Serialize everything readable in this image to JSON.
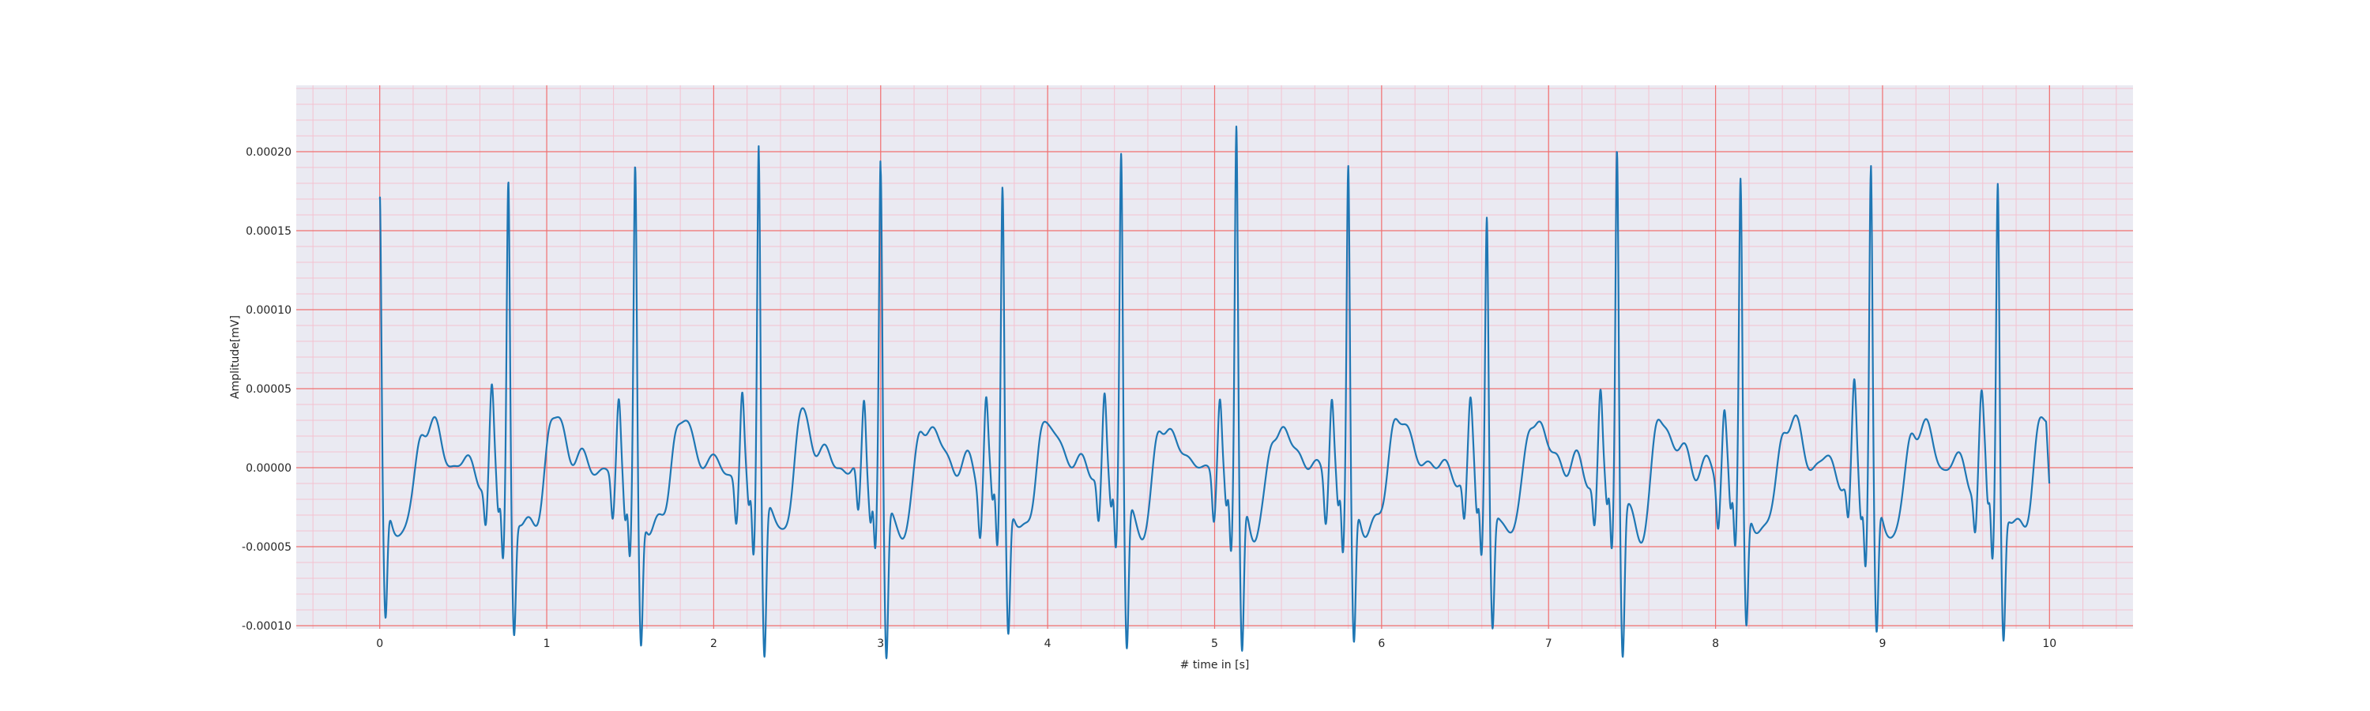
{
  "chart_data": {
    "type": "line",
    "title": "",
    "xlabel": "# time in [s]",
    "ylabel": "Amplitude[mV]",
    "xlim": [
      -0.5,
      10.5
    ],
    "ylim": [
      -0.000102,
      0.000242
    ],
    "x_ticks": [
      0,
      1,
      2,
      3,
      4,
      5,
      6,
      7,
      8,
      9,
      10
    ],
    "x_tick_labels": [
      "0",
      "1",
      "2",
      "3",
      "4",
      "5",
      "6",
      "7",
      "8",
      "9",
      "10"
    ],
    "y_ticks": [
      -0.0001,
      -5e-05,
      0.0,
      5e-05,
      0.0001,
      0.00015,
      0.0002
    ],
    "y_tick_labels": [
      "-0.00010",
      "-0.00005",
      "0.00000",
      "0.00005",
      "0.00010",
      "0.00015",
      "0.00020"
    ],
    "grid": {
      "major": true,
      "minor": true,
      "major_color": "#f07070",
      "minor_color": "#f4c2d0"
    },
    "background_color": "#eaeaf2",
    "line_color": "#1f77b4",
    "series": [
      {
        "beats": [
          {
            "t": 0.0,
            "r": 0.00018
          },
          {
            "t": 0.77,
            "r": 0.000192
          },
          {
            "t": 1.53,
            "r": 0.000196
          },
          {
            "t": 2.27,
            "r": 0.00022
          },
          {
            "t": 3.0,
            "r": 0.0002
          },
          {
            "t": 3.73,
            "r": 0.00019
          },
          {
            "t": 4.44,
            "r": 0.000212
          },
          {
            "t": 5.13,
            "r": 0.000227
          },
          {
            "t": 5.8,
            "r": 0.000203
          },
          {
            "t": 6.63,
            "r": 0.000168
          },
          {
            "t": 7.41,
            "r": 0.000219
          },
          {
            "t": 8.15,
            "r": 0.000188
          },
          {
            "t": 8.93,
            "r": 0.0002
          },
          {
            "t": 9.69,
            "r": 0.000193
          }
        ],
        "s_depths": [
          -7e-05,
          -7e-05,
          -8e-05,
          -8.5e-05,
          -9e-05,
          -7.5e-05,
          -8.5e-05,
          -9e-05,
          -8.2e-05,
          -6.8e-05,
          -8.5e-05,
          -7.2e-05,
          -8e-05,
          -7.5e-05
        ],
        "t_end": 10.0,
        "y_end": -1.2e-05
      }
    ]
  }
}
